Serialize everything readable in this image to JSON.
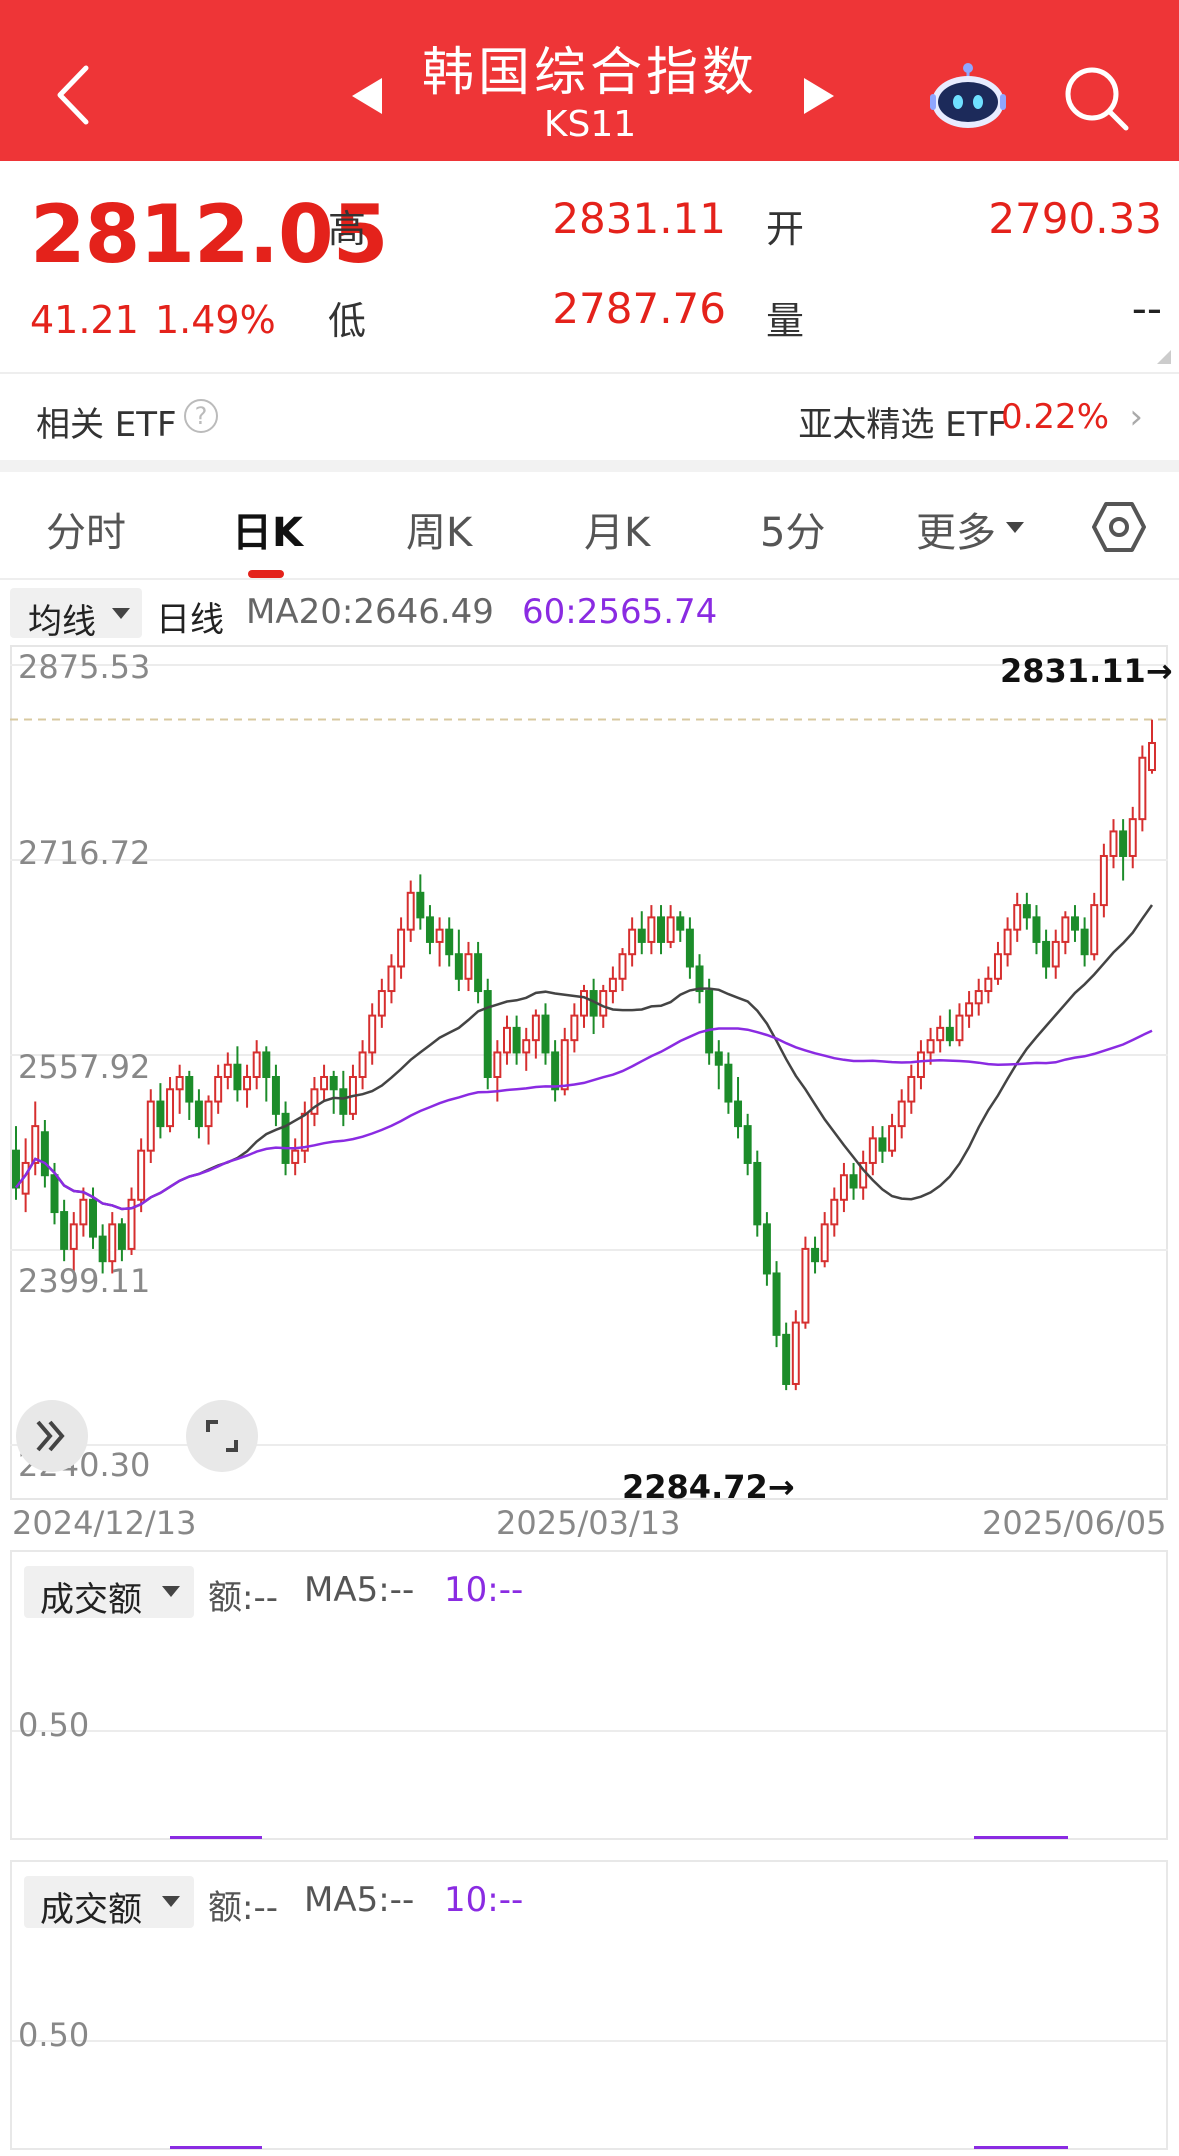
{
  "header": {
    "title": "韩国综合指数",
    "subtitle": "KS11",
    "bg_color": "#ee3537"
  },
  "quote": {
    "price": "2812.05",
    "change": "41.21",
    "change_pct": "1.49%",
    "high_label": "高",
    "high_value": "2831.11",
    "low_label": "低",
    "low_value": "2787.76",
    "open_label": "开",
    "open_value": "2790.33",
    "volume_label": "量",
    "volume_value": "--",
    "up_color": "#e4221b"
  },
  "etf": {
    "label": "相关 ETF",
    "help": "?",
    "right_label": "亚太精选 ETF",
    "right_value": "0.22%",
    "chevron": "›"
  },
  "tabs": [
    {
      "label": "分时"
    },
    {
      "label": "日K"
    },
    {
      "label": "周K"
    },
    {
      "label": "月K"
    },
    {
      "label": "5分"
    },
    {
      "label": "更多"
    }
  ],
  "ma_row": {
    "select_label": "均线",
    "period": "日线",
    "ma20": "MA20:2646.49",
    "ma60": "60:2565.74"
  },
  "chart_data": {
    "type": "candlestick",
    "y_ticks": [
      "2875.53",
      "2716.72",
      "2557.92",
      "2399.11",
      "2240.30"
    ],
    "x_ticks": [
      "2024/12/13",
      "2025/03/13",
      "2025/06/05"
    ],
    "ylim": [
      2240.3,
      2875.53
    ],
    "max_annotation": "2831.11→",
    "min_annotation": "2284.72→",
    "reference_line": 2831.11,
    "series": [
      {
        "name": "MA20",
        "color": "#444444"
      },
      {
        "name": "MA60",
        "color": "#8a2be2"
      }
    ],
    "candles": [
      [
        2480,
        2450,
        2500,
        2440
      ],
      [
        2445,
        2470,
        2490,
        2430
      ],
      [
        2470,
        2500,
        2520,
        2460
      ],
      [
        2495,
        2460,
        2505,
        2450
      ],
      [
        2460,
        2430,
        2470,
        2420
      ],
      [
        2430,
        2400,
        2440,
        2390
      ],
      [
        2400,
        2420,
        2430,
        2380
      ],
      [
        2420,
        2440,
        2450,
        2410
      ],
      [
        2440,
        2410,
        2450,
        2400
      ],
      [
        2410,
        2390,
        2420,
        2380
      ],
      [
        2390,
        2420,
        2430,
        2380
      ],
      [
        2420,
        2400,
        2425,
        2390
      ],
      [
        2400,
        2440,
        2450,
        2395
      ],
      [
        2440,
        2480,
        2490,
        2430
      ],
      [
        2480,
        2520,
        2530,
        2470
      ],
      [
        2520,
        2500,
        2535,
        2490
      ],
      [
        2500,
        2530,
        2540,
        2495
      ],
      [
        2530,
        2540,
        2550,
        2510
      ],
      [
        2540,
        2520,
        2545,
        2505
      ],
      [
        2520,
        2500,
        2530,
        2490
      ],
      [
        2500,
        2520,
        2525,
        2485
      ],
      [
        2520,
        2540,
        2550,
        2510
      ],
      [
        2540,
        2550,
        2560,
        2530
      ],
      [
        2550,
        2530,
        2565,
        2520
      ],
      [
        2530,
        2540,
        2550,
        2515
      ],
      [
        2540,
        2560,
        2570,
        2530
      ],
      [
        2560,
        2540,
        2565,
        2520
      ],
      [
        2540,
        2510,
        2550,
        2500
      ],
      [
        2510,
        2470,
        2520,
        2460
      ],
      [
        2470,
        2480,
        2490,
        2460
      ],
      [
        2480,
        2510,
        2520,
        2470
      ],
      [
        2510,
        2530,
        2540,
        2500
      ],
      [
        2530,
        2540,
        2550,
        2520
      ],
      [
        2540,
        2530,
        2545,
        2510
      ],
      [
        2530,
        2510,
        2545,
        2500
      ],
      [
        2510,
        2540,
        2550,
        2505
      ],
      [
        2540,
        2560,
        2570,
        2530
      ],
      [
        2560,
        2590,
        2600,
        2550
      ],
      [
        2590,
        2610,
        2620,
        2580
      ],
      [
        2610,
        2630,
        2640,
        2600
      ],
      [
        2630,
        2660,
        2670,
        2620
      ],
      [
        2660,
        2690,
        2700,
        2650
      ],
      [
        2690,
        2670,
        2705,
        2660
      ],
      [
        2670,
        2650,
        2680,
        2640
      ],
      [
        2650,
        2660,
        2670,
        2630
      ],
      [
        2660,
        2640,
        2670,
        2630
      ],
      [
        2640,
        2620,
        2660,
        2610
      ],
      [
        2620,
        2640,
        2650,
        2610
      ],
      [
        2640,
        2610,
        2650,
        2600
      ],
      [
        2610,
        2540,
        2620,
        2530
      ],
      [
        2540,
        2560,
        2570,
        2520
      ],
      [
        2560,
        2580,
        2590,
        2550
      ],
      [
        2580,
        2560,
        2590,
        2550
      ],
      [
        2560,
        2570,
        2580,
        2545
      ],
      [
        2570,
        2590,
        2595,
        2555
      ],
      [
        2590,
        2560,
        2600,
        2550
      ],
      [
        2560,
        2530,
        2570,
        2520
      ],
      [
        2530,
        2570,
        2580,
        2525
      ],
      [
        2570,
        2590,
        2600,
        2560
      ],
      [
        2590,
        2610,
        2615,
        2580
      ],
      [
        2610,
        2590,
        2620,
        2575
      ],
      [
        2590,
        2610,
        2615,
        2580
      ],
      [
        2610,
        2620,
        2630,
        2600
      ],
      [
        2620,
        2640,
        2645,
        2610
      ],
      [
        2640,
        2660,
        2670,
        2630
      ],
      [
        2660,
        2650,
        2675,
        2640
      ],
      [
        2650,
        2670,
        2680,
        2640
      ],
      [
        2670,
        2650,
        2680,
        2640
      ],
      [
        2650,
        2670,
        2680,
        2645
      ],
      [
        2670,
        2660,
        2675,
        2650
      ],
      [
        2660,
        2630,
        2670,
        2620
      ],
      [
        2630,
        2610,
        2640,
        2600
      ],
      [
        2610,
        2560,
        2620,
        2550
      ],
      [
        2560,
        2550,
        2570,
        2530
      ],
      [
        2550,
        2520,
        2560,
        2510
      ],
      [
        2520,
        2500,
        2540,
        2490
      ],
      [
        2500,
        2470,
        2510,
        2460
      ],
      [
        2470,
        2420,
        2480,
        2410
      ],
      [
        2420,
        2380,
        2430,
        2370
      ],
      [
        2380,
        2330,
        2390,
        2320
      ],
      [
        2330,
        2290,
        2340,
        2285
      ],
      [
        2290,
        2340,
        2350,
        2285
      ],
      [
        2340,
        2400,
        2410,
        2335
      ],
      [
        2400,
        2390,
        2410,
        2380
      ],
      [
        2390,
        2420,
        2430,
        2385
      ],
      [
        2420,
        2440,
        2450,
        2410
      ],
      [
        2440,
        2460,
        2470,
        2430
      ],
      [
        2460,
        2450,
        2470,
        2440
      ],
      [
        2450,
        2470,
        2480,
        2440
      ],
      [
        2470,
        2490,
        2500,
        2460
      ],
      [
        2490,
        2480,
        2500,
        2470
      ],
      [
        2480,
        2500,
        2510,
        2475
      ],
      [
        2500,
        2520,
        2530,
        2490
      ],
      [
        2520,
        2540,
        2550,
        2510
      ],
      [
        2540,
        2560,
        2570,
        2530
      ],
      [
        2560,
        2570,
        2580,
        2550
      ],
      [
        2570,
        2580,
        2590,
        2560
      ],
      [
        2580,
        2570,
        2595,
        2565
      ],
      [
        2570,
        2590,
        2600,
        2565
      ],
      [
        2590,
        2600,
        2610,
        2580
      ],
      [
        2600,
        2610,
        2620,
        2590
      ],
      [
        2610,
        2620,
        2630,
        2600
      ],
      [
        2620,
        2640,
        2650,
        2615
      ],
      [
        2640,
        2660,
        2670,
        2630
      ],
      [
        2660,
        2680,
        2690,
        2650
      ],
      [
        2680,
        2670,
        2690,
        2660
      ],
      [
        2670,
        2650,
        2680,
        2640
      ],
      [
        2650,
        2630,
        2660,
        2620
      ],
      [
        2630,
        2650,
        2660,
        2620
      ],
      [
        2650,
        2670,
        2675,
        2640
      ],
      [
        2670,
        2660,
        2680,
        2650
      ],
      [
        2660,
        2640,
        2670,
        2630
      ],
      [
        2640,
        2680,
        2690,
        2635
      ],
      [
        2680,
        2720,
        2730,
        2670
      ],
      [
        2720,
        2740,
        2750,
        2710
      ],
      [
        2740,
        2720,
        2750,
        2700
      ],
      [
        2720,
        2750,
        2760,
        2710
      ],
      [
        2750,
        2800,
        2810,
        2740
      ],
      [
        2790,
        2812,
        2831,
        2787
      ]
    ]
  },
  "panels": [
    {
      "select_label": "成交额",
      "amount": "额:--",
      "ma5": "MA5:--",
      "ma10": "10:--",
      "tick": "0.50"
    },
    {
      "select_label": "成交额",
      "amount": "额:--",
      "ma5": "MA5:--",
      "ma10": "10:--",
      "tick": "0.50"
    }
  ]
}
